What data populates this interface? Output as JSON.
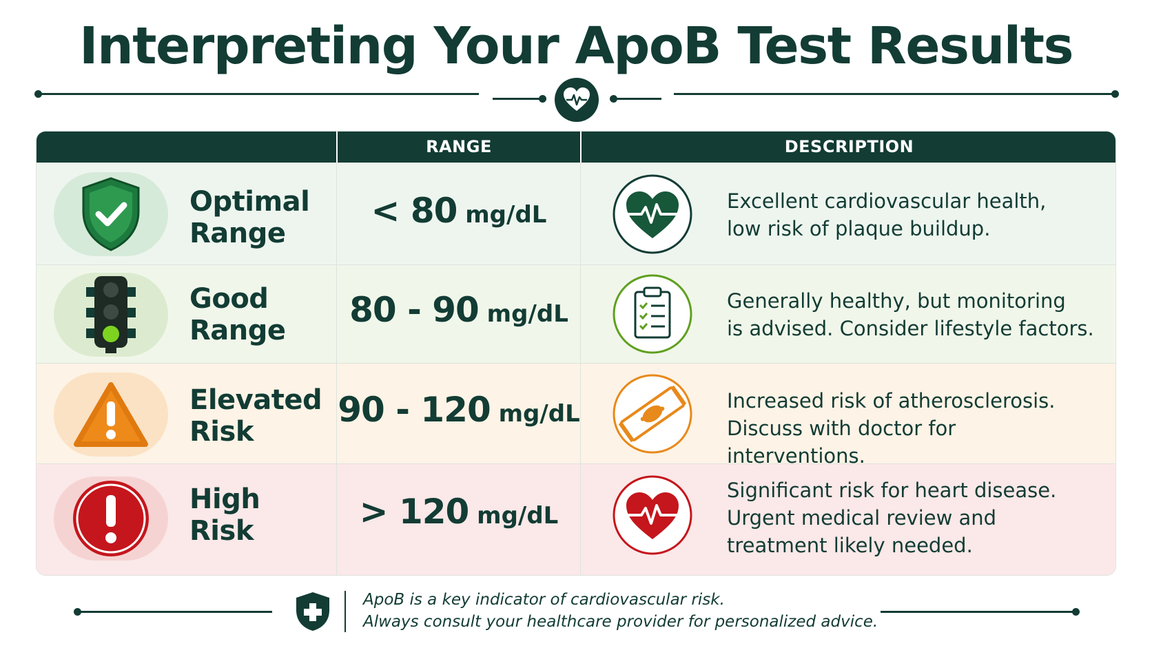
{
  "title": "Interpreting Your ApoB Test Results",
  "header": {
    "col_range": "RANGE",
    "col_description": "DESCRIPTION"
  },
  "rows": [
    {
      "label_line1": "Optimal",
      "label_line2": "Range",
      "range_value": "< 80",
      "range_unit": " mg/dL",
      "desc_lines": [
        "Excellent cardiovascular health,",
        "low risk of plaque buildup."
      ],
      "row_icon": "shield-check-icon",
      "desc_icon": "heart-pulse-icon",
      "bg": "#eef5ef",
      "accent": "#1d7a3e"
    },
    {
      "label_line1": "Good",
      "label_line2": "Range",
      "range_value": "80 - 90",
      "range_unit": " mg/dL",
      "desc_lines": [
        "Generally healthy, but monitoring",
        "is advised. Consider lifestyle factors."
      ],
      "row_icon": "traffic-light-icon",
      "desc_icon": "clipboard-checklist-icon",
      "bg": "#f1f6ea",
      "accent": "#5fa01f"
    },
    {
      "label_line1": "Elevated",
      "label_line2": "Risk",
      "range_value": "90 - 120",
      "range_unit": " mg/dL",
      "desc_lines": [
        "Increased risk of atherosclerosis.",
        "Discuss with doctor for interventions."
      ],
      "row_icon": "warning-triangle-icon",
      "desc_icon": "artery-plaque-icon",
      "bg": "#fdf3e6",
      "accent": "#e8891b"
    },
    {
      "label_line1": "High",
      "label_line2": "Risk",
      "range_value": "> 120",
      "range_unit": " mg/dL",
      "desc_lines": [
        "Significant risk for heart disease.",
        "Urgent medical review and",
        "treatment likely needed."
      ],
      "row_icon": "alert-circle-icon",
      "desc_icon": "heart-pulse-icon",
      "bg": "#fbe8e8",
      "accent": "#c4161c"
    }
  ],
  "footer": {
    "line1": "ApoB is a key indicator of cardiovascular risk.",
    "line2": "Always consult your healthcare provider for personalized advice.",
    "icon": "shield-cross-icon"
  },
  "colors": {
    "primary": "#123c34",
    "optimal": "#1d7a3e",
    "good": "#5fa01f",
    "elevated": "#e8891b",
    "high": "#c4161c"
  }
}
